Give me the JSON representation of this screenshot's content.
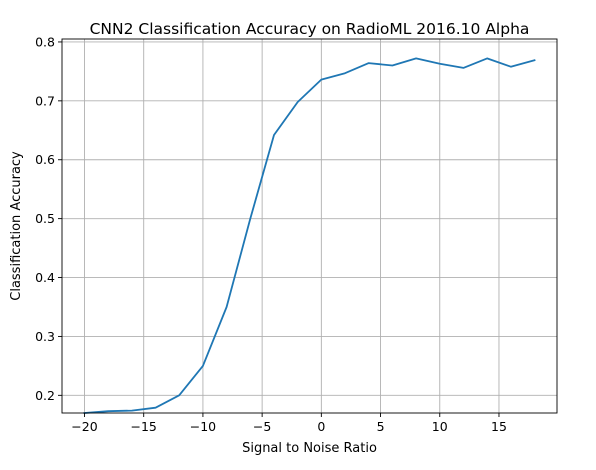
{
  "chart_data": {
    "type": "line",
    "title": "CNN2 Classification Accuracy on RadioML 2016.10 Alpha",
    "xlabel": "Signal to Noise Ratio",
    "ylabel": "Classification Accuracy",
    "xlim": [
      -21.9,
      19.9
    ],
    "ylim": [
      0.17,
      0.805
    ],
    "xticks": [
      -20,
      -15,
      -10,
      -5,
      0,
      5,
      10,
      15
    ],
    "xtick_labels": [
      "−20",
      "−15",
      "−10",
      "−5",
      "0",
      "5",
      "10",
      "15"
    ],
    "yticks": [
      0.2,
      0.3,
      0.4,
      0.5,
      0.6,
      0.7,
      0.8
    ],
    "ytick_labels": [
      "0.2",
      "0.3",
      "0.4",
      "0.5",
      "0.6",
      "0.7",
      "0.8"
    ],
    "grid": true,
    "legend": "none",
    "series": [
      {
        "color": "#1f77b4",
        "x": [
          -20,
          -18,
          -16,
          -14,
          -12,
          -10,
          -8,
          -6,
          -4,
          -2,
          0,
          2,
          4,
          6,
          8,
          10,
          12,
          14,
          16,
          18
        ],
        "y": [
          0.17,
          0.173,
          0.174,
          0.179,
          0.2,
          0.25,
          0.35,
          0.5,
          0.642,
          0.698,
          0.736,
          0.747,
          0.764,
          0.76,
          0.772,
          0.763,
          0.756,
          0.772,
          0.758,
          0.769
        ]
      }
    ]
  }
}
